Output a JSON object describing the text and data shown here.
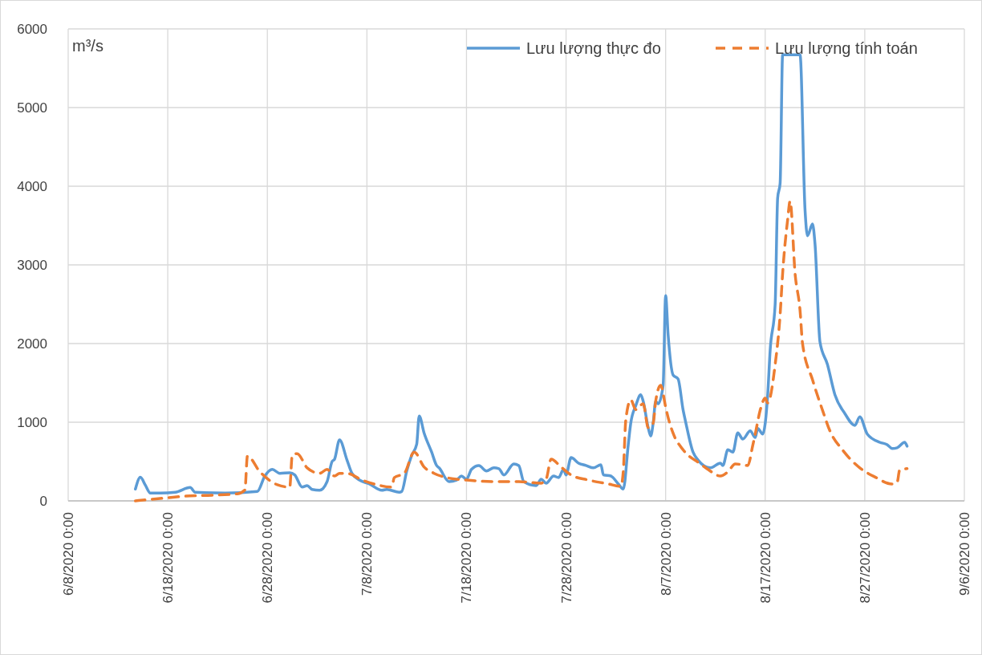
{
  "chart_data": {
    "type": "line",
    "ylabel": "m³/s",
    "legend": "top right",
    "grid": true,
    "xlim": [
      "2020-06-08",
      "2020-09-06"
    ],
    "xticks": [
      {
        "value": "2020-06-08",
        "label": "6/8/2020 0:00"
      },
      {
        "value": "2020-06-18",
        "label": "6/18/2020 0:00"
      },
      {
        "value": "2020-06-28",
        "label": "6/28/2020 0:00"
      },
      {
        "value": "2020-07-08",
        "label": "7/8/2020 0:00"
      },
      {
        "value": "2020-07-18",
        "label": "7/18/2020 0:00"
      },
      {
        "value": "2020-07-28",
        "label": "7/28/2020 0:00"
      },
      {
        "value": "2020-08-07",
        "label": "8/7/2020 0:00"
      },
      {
        "value": "2020-08-17",
        "label": "8/17/2020 0:00"
      },
      {
        "value": "2020-08-27",
        "label": "8/27/2020 0:00"
      },
      {
        "value": "2020-09-06",
        "label": "9/6/2020 0:00"
      }
    ],
    "ylim": [
      0,
      6000
    ],
    "yticks": [
      0,
      1000,
      2000,
      3000,
      4000,
      5000,
      6000
    ],
    "series": [
      {
        "name": "Lưu lượng thực đo",
        "color": "#5b9bd5",
        "line_style": "solid",
        "x": [
          "2020-06-14T18:00",
          "2020-06-15T06:00",
          "2020-06-15T18:00",
          "2020-06-16T06:00",
          "2020-06-17T06:00",
          "2020-06-18T18:00",
          "2020-06-20T06:00",
          "2020-06-20T18:00",
          "2020-06-23T18:00",
          "2020-06-27T00:00",
          "2020-06-27T18:00",
          "2020-06-28T12:00",
          "2020-06-29T06:00",
          "2020-06-30T06:00",
          "2020-06-30T18:00",
          "2020-07-01T12:00",
          "2020-07-02T00:00",
          "2020-07-02T12:00",
          "2020-07-03T06:00",
          "2020-07-04T00:00",
          "2020-07-04T12:00",
          "2020-07-04T18:00",
          "2020-07-05T06:00",
          "2020-07-06T00:00",
          "2020-07-06T12:00",
          "2020-07-07T06:00",
          "2020-07-08T06:00",
          "2020-07-09T12:00",
          "2020-07-10T00:00",
          "2020-07-11T06:00",
          "2020-07-11T12:00",
          "2020-07-12T00:00",
          "2020-07-12T12:00",
          "2020-07-13T00:00",
          "2020-07-13T06:00",
          "2020-07-13T18:00",
          "2020-07-14T12:00",
          "2020-07-15T00:00",
          "2020-07-15T06:00",
          "2020-07-16T06:00",
          "2020-07-17T00:00",
          "2020-07-17T12:00",
          "2020-07-18T00:00",
          "2020-07-18T12:00",
          "2020-07-19T06:00",
          "2020-07-20T00:00",
          "2020-07-20T18:00",
          "2020-07-21T06:00",
          "2020-07-21T18:00",
          "2020-07-22T18:00",
          "2020-07-23T06:00",
          "2020-07-23T18:00",
          "2020-07-25T00:00",
          "2020-07-25T12:00",
          "2020-07-26T00:00",
          "2020-07-26T18:00",
          "2020-07-27T06:00",
          "2020-07-27T18:00",
          "2020-07-28T00:00",
          "2020-07-28T12:00",
          "2020-07-29T06:00",
          "2020-07-30T00:00",
          "2020-07-30T18:00",
          "2020-07-31T12:00",
          "2020-07-31T18:00",
          "2020-08-01T12:00",
          "2020-08-02T06:00",
          "2020-08-02T18:00",
          "2020-08-03T06:00",
          "2020-08-03T12:00",
          "2020-08-04T00:00",
          "2020-08-04T12:00",
          "2020-08-04T18:00",
          "2020-08-05T06:00",
          "2020-08-05T12:00",
          "2020-08-05T18:00",
          "2020-08-06T00:00",
          "2020-08-06T06:00",
          "2020-08-06T18:00",
          "2020-08-07T00:00",
          "2020-08-07T06:00",
          "2020-08-07T18:00",
          "2020-08-08T06:00",
          "2020-08-08T18:00",
          "2020-08-09T00:00",
          "2020-08-09T18:00",
          "2020-08-10T06:00",
          "2020-08-11T12:00",
          "2020-08-12T12:00",
          "2020-08-12T18:00",
          "2020-08-13T06:00",
          "2020-08-13T18:00",
          "2020-08-14T06:00",
          "2020-08-14T18:00",
          "2020-08-15T12:00",
          "2020-08-16T00:00",
          "2020-08-16T06:00",
          "2020-08-16T18:00",
          "2020-08-17T06:00",
          "2020-08-17T12:00",
          "2020-08-18T00:00",
          "2020-08-18T06:00",
          "2020-08-18T12:00",
          "2020-08-18T18:00",
          "2020-08-20T12:00",
          "2020-08-21T00:00",
          "2020-08-21T06:00",
          "2020-08-21T18:00",
          "2020-08-22T00:00",
          "2020-08-22T12:00",
          "2020-08-23T06:00",
          "2020-08-24T00:00",
          "2020-08-25T00:00",
          "2020-08-26T00:00",
          "2020-08-26T12:00",
          "2020-08-27T06:00",
          "2020-08-28T12:00",
          "2020-08-29T06:00",
          "2020-08-29T18:00",
          "2020-08-30T06:00",
          "2020-08-31T00:00",
          "2020-08-31T06:00"
        ],
        "values": [
          150,
          300,
          200,
          100,
          100,
          110,
          170,
          110,
          100,
          120,
          316,
          400,
          350,
          357,
          330,
          175,
          195,
          145,
          135,
          245,
          500,
          530,
          775,
          520,
          350,
          265,
          215,
          135,
          145,
          110,
          120,
          380,
          580,
          720,
          1080,
          860,
          620,
          450,
          420,
          245,
          265,
          316,
          275,
          400,
          450,
          380,
          420,
          410,
          330,
          470,
          450,
          245,
          195,
          275,
          225,
          316,
          296,
          400,
          330,
          550,
          480,
          450,
          420,
          460,
          330,
          316,
          215,
          150,
          720,
          990,
          1210,
          1350,
          1265,
          930,
          825,
          990,
          1265,
          1235,
          1470,
          2610,
          2110,
          1600,
          1550,
          1160,
          1010,
          620,
          520,
          420,
          480,
          450,
          650,
          620,
          865,
          785,
          890,
          805,
          920,
          850,
          1350,
          1920,
          2500,
          3850,
          4040,
          5670,
          5670,
          3700,
          3370,
          3520,
          3270,
          2020,
          1735,
          1350,
          1110,
          960,
          1070,
          850,
          745,
          715,
          665,
          675,
          745,
          695
        ]
      },
      {
        "name": "Lưu lượng tính toán",
        "color": "#ed7d31",
        "line_style": "dashed",
        "x": [
          "2020-06-14T18:00",
          "2020-06-18T00:00",
          "2020-06-19T18:00",
          "2020-06-22T00:00",
          "2020-06-25T00:00",
          "2020-06-25T18:00",
          "2020-06-26T00:00",
          "2020-06-27T06:00",
          "2020-06-29T00:00",
          "2020-06-30T06:00",
          "2020-06-30T12:00",
          "2020-07-01T00:00",
          "2020-07-02T00:00",
          "2020-07-03T06:00",
          "2020-07-04T00:00",
          "2020-07-04T18:00",
          "2020-07-05T06:00",
          "2020-07-06T00:00",
          "2020-07-07T12:00",
          "2020-07-09T00:00",
          "2020-07-10T12:00",
          "2020-07-10T18:00",
          "2020-07-11T18:00",
          "2020-07-12T18:00",
          "2020-07-13T18:00",
          "2020-07-14T18:00",
          "2020-07-16T00:00",
          "2020-07-18T00:00",
          "2020-07-20T18:00",
          "2020-07-23T06:00",
          "2020-07-25T12:00",
          "2020-07-26T00:00",
          "2020-07-26T12:00",
          "2020-07-27T12:00",
          "2020-07-28T12:00",
          "2020-07-30T06:00",
          "2020-08-01T06:00",
          "2020-08-02T12:00",
          "2020-08-02T18:00",
          "2020-08-03T00:00",
          "2020-08-03T12:00",
          "2020-08-04T00:00",
          "2020-08-04T18:00",
          "2020-08-05T06:00",
          "2020-08-05T18:00",
          "2020-08-06T00:00",
          "2020-08-06T12:00",
          "2020-08-07T00:00",
          "2020-08-07T06:00",
          "2020-08-07T18:00",
          "2020-08-08T18:00",
          "2020-08-10T12:00",
          "2020-08-11T06:00",
          "2020-08-12T12:00",
          "2020-08-13T06:00",
          "2020-08-14T00:00",
          "2020-08-15T06:00",
          "2020-08-15T18:00",
          "2020-08-16T00:00",
          "2020-08-16T12:00",
          "2020-08-17T00:00",
          "2020-08-17T06:00",
          "2020-08-18T00:00",
          "2020-08-18T12:00",
          "2020-08-18T18:00",
          "2020-08-19T06:00",
          "2020-08-19T12:00",
          "2020-08-20T00:00",
          "2020-08-20T12:00",
          "2020-08-20T18:00",
          "2020-08-21T18:00",
          "2020-08-22T18:00",
          "2020-08-23T12:00",
          "2020-08-24T18:00",
          "2020-08-26T12:00",
          "2020-08-28T00:00",
          "2020-08-29T18:00",
          "2020-08-30T06:00",
          "2020-08-30T12:00",
          "2020-08-31T06:00"
        ],
        "values": [
          0,
          40,
          60,
          70,
          90,
          140,
          570,
          370,
          205,
          175,
          580,
          600,
          420,
          350,
          400,
          316,
          350,
          350,
          265,
          205,
          175,
          296,
          350,
          620,
          430,
          350,
          296,
          265,
          245,
          245,
          225,
          275,
          530,
          430,
          330,
          265,
          215,
          185,
          380,
          1030,
          1285,
          1160,
          1235,
          930,
          990,
          1265,
          1470,
          1195,
          1060,
          860,
          650,
          470,
          400,
          316,
          370,
          470,
          450,
          705,
          850,
          1155,
          1305,
          1245,
          1735,
          2370,
          2890,
          3570,
          3810,
          2890,
          2420,
          2000,
          1540,
          1155,
          890,
          650,
          420,
          305,
          215,
          235,
          390,
          410
        ]
      }
    ]
  }
}
